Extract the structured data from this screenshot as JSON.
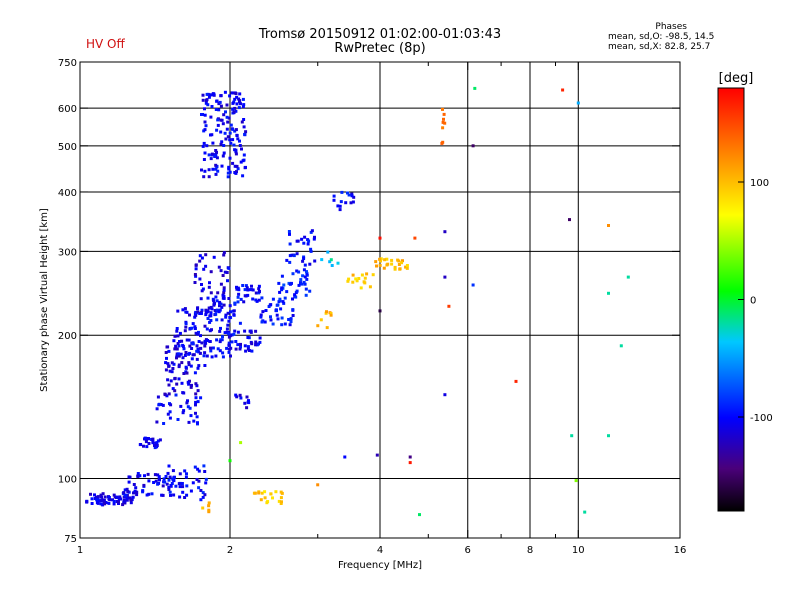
{
  "header": {
    "hv_status": "HV Off",
    "title_line1": "Tromsø 20150912 01:02:00-01:03:43",
    "title_line2": "RwPretec (8p)"
  },
  "stats": {
    "label": "Phases",
    "line_o": "mean, sd,O:  -98.5, 14.5",
    "line_x": "mean, sd,X:  82.8, 25.7"
  },
  "colorbar": {
    "unit": "[deg]",
    "ticks": [
      {
        "v": 100,
        "label": "100"
      },
      {
        "v": 0,
        "label": "0"
      },
      {
        "v": -100,
        "label": "-100"
      }
    ],
    "range": [
      -180,
      180
    ]
  },
  "chart_data": {
    "type": "scatter",
    "title": "Tromsø 20150912 01:02:00-01:03:43",
    "subtitle": "RwPretec (8p)",
    "xlabel": "Frequency [MHz]",
    "ylabel": "Stationary phase Virtual Height [km]",
    "xscale": "log",
    "yscale": "log",
    "xlim": [
      1,
      16
    ],
    "ylim": [
      75,
      750
    ],
    "xticks": [
      {
        "v": 1,
        "label": "1"
      },
      {
        "v": 2,
        "label": "2"
      },
      {
        "v": 4,
        "label": "4"
      },
      {
        "v": 6,
        "label": "6"
      },
      {
        "v": 8,
        "label": "8"
      },
      {
        "v": 10,
        "label": "10"
      },
      {
        "v": 16,
        "label": "16"
      }
    ],
    "yticks": [
      {
        "v": 75,
        "label": "75"
      },
      {
        "v": 100,
        "label": "100"
      },
      {
        "v": 200,
        "label": "200"
      },
      {
        "v": 300,
        "label": "300"
      },
      {
        "v": 400,
        "label": "400"
      },
      {
        "v": 500,
        "label": "500"
      },
      {
        "v": 600,
        "label": "600"
      },
      {
        "v": 750,
        "label": "750"
      }
    ],
    "vgrid": [
      2,
      4,
      6,
      8,
      10
    ],
    "hgrid": [
      100,
      200,
      300,
      400,
      500,
      600
    ],
    "minor_xticks": [
      3,
      5,
      7,
      9
    ],
    "color_scale": "phase (deg), -180 black to 180 red",
    "point_groups": [
      {
        "f": [
          1.03,
          1.28
        ],
        "h": [
          88,
          93
        ],
        "phase": -110,
        "n": 70
      },
      {
        "f": [
          1.22,
          1.55
        ],
        "h": [
          92,
          103
        ],
        "phase": -105,
        "n": 60
      },
      {
        "f": [
          1.5,
          1.8
        ],
        "h": [
          90,
          107
        ],
        "phase": -100,
        "n": 40
      },
      {
        "f": [
          1.32,
          1.45
        ],
        "h": [
          116,
          122
        ],
        "phase": -105,
        "n": 25
      },
      {
        "f": [
          1.4,
          1.75
        ],
        "h": [
          130,
          150
        ],
        "phase": -105,
        "n": 35
      },
      {
        "f": [
          1.48,
          1.75
        ],
        "h": [
          150,
          195
        ],
        "phase": -110,
        "n": 70
      },
      {
        "f": [
          1.55,
          1.85
        ],
        "h": [
          170,
          230
        ],
        "phase": -105,
        "n": 80
      },
      {
        "f": [
          1.7,
          2.0
        ],
        "h": [
          220,
          300
        ],
        "phase": -110,
        "n": 60
      },
      {
        "f": [
          1.8,
          2.1
        ],
        "h": [
          180,
          240
        ],
        "phase": -100,
        "n": 60
      },
      {
        "f": [
          1.95,
          2.3
        ],
        "h": [
          185,
          205
        ],
        "phase": -105,
        "n": 40
      },
      {
        "f": [
          2.05,
          2.3
        ],
        "h": [
          235,
          255
        ],
        "phase": -100,
        "n": 30
      },
      {
        "f": [
          2.3,
          2.7
        ],
        "h": [
          210,
          240
        ],
        "phase": -95,
        "n": 40
      },
      {
        "f": [
          2.5,
          2.9
        ],
        "h": [
          240,
          275
        ],
        "phase": -90,
        "n": 35
      },
      {
        "f": [
          2.6,
          3.0
        ],
        "h": [
          280,
          340
        ],
        "phase": -100,
        "n": 30
      },
      {
        "f": [
          2.05,
          2.2
        ],
        "h": [
          140,
          150
        ],
        "phase": -110,
        "n": 10
      },
      {
        "f": [
          1.75,
          2.15
        ],
        "h": [
          430,
          650
        ],
        "phase": -105,
        "n": 160
      },
      {
        "f": [
          3.2,
          3.55
        ],
        "h": [
          360,
          400
        ],
        "phase": -100,
        "n": 15
      },
      {
        "f": [
          3.4,
          3.9
        ],
        "h": [
          250,
          270
        ],
        "phase": 95,
        "n": 15
      },
      {
        "f": [
          3.9,
          4.6
        ],
        "h": [
          275,
          290
        ],
        "phase": 100,
        "n": 25
      },
      {
        "f": [
          3.0,
          3.2
        ],
        "h": [
          205,
          225
        ],
        "phase": 105,
        "n": 8
      },
      {
        "f": [
          2.2,
          2.55
        ],
        "h": [
          88,
          94
        ],
        "phase": 95,
        "n": 20
      },
      {
        "f": [
          1.75,
          1.85
        ],
        "h": [
          85,
          89
        ],
        "phase": 105,
        "n": 5
      },
      {
        "f": [
          5.3,
          5.4
        ],
        "h": [
          490,
          610
        ],
        "phase": 135,
        "n": 8
      },
      {
        "f": [
          3.05,
          3.3
        ],
        "h": [
          280,
          300
        ],
        "phase": -30,
        "n": 6
      }
    ],
    "points": [
      {
        "f": 6.2,
        "h": 660,
        "phase": -10
      },
      {
        "f": 9.3,
        "h": 655,
        "phase": 165
      },
      {
        "f": 10.0,
        "h": 615,
        "phase": -45
      },
      {
        "f": 6.15,
        "h": 500,
        "phase": -150
      },
      {
        "f": 9.6,
        "h": 350,
        "phase": -150
      },
      {
        "f": 11.5,
        "h": 340,
        "phase": 120
      },
      {
        "f": 5.4,
        "h": 330,
        "phase": -120
      },
      {
        "f": 4.0,
        "h": 320,
        "phase": 175
      },
      {
        "f": 4.7,
        "h": 320,
        "phase": 150
      },
      {
        "f": 5.4,
        "h": 265,
        "phase": -120
      },
      {
        "f": 6.15,
        "h": 255,
        "phase": -85
      },
      {
        "f": 12.6,
        "h": 265,
        "phase": -20
      },
      {
        "f": 11.5,
        "h": 245,
        "phase": -20
      },
      {
        "f": 5.5,
        "h": 230,
        "phase": 155
      },
      {
        "f": 4.0,
        "h": 225,
        "phase": -160
      },
      {
        "f": 12.2,
        "h": 190,
        "phase": -20
      },
      {
        "f": 7.5,
        "h": 160,
        "phase": 165
      },
      {
        "f": 5.4,
        "h": 150,
        "phase": -110
      },
      {
        "f": 9.7,
        "h": 123,
        "phase": -20
      },
      {
        "f": 11.5,
        "h": 123,
        "phase": -20
      },
      {
        "f": 3.4,
        "h": 111,
        "phase": -100
      },
      {
        "f": 4.6,
        "h": 111,
        "phase": -140
      },
      {
        "f": 4.6,
        "h": 108,
        "phase": 170
      },
      {
        "f": 3.0,
        "h": 97,
        "phase": 120
      },
      {
        "f": 9.9,
        "h": 99,
        "phase": 40
      },
      {
        "f": 10.3,
        "h": 85,
        "phase": -20
      },
      {
        "f": 2.0,
        "h": 109,
        "phase": 10
      },
      {
        "f": 2.1,
        "h": 119,
        "phase": 50
      },
      {
        "f": 4.8,
        "h": 84,
        "phase": -10
      },
      {
        "f": 3.95,
        "h": 112,
        "phase": -125
      }
    ]
  }
}
